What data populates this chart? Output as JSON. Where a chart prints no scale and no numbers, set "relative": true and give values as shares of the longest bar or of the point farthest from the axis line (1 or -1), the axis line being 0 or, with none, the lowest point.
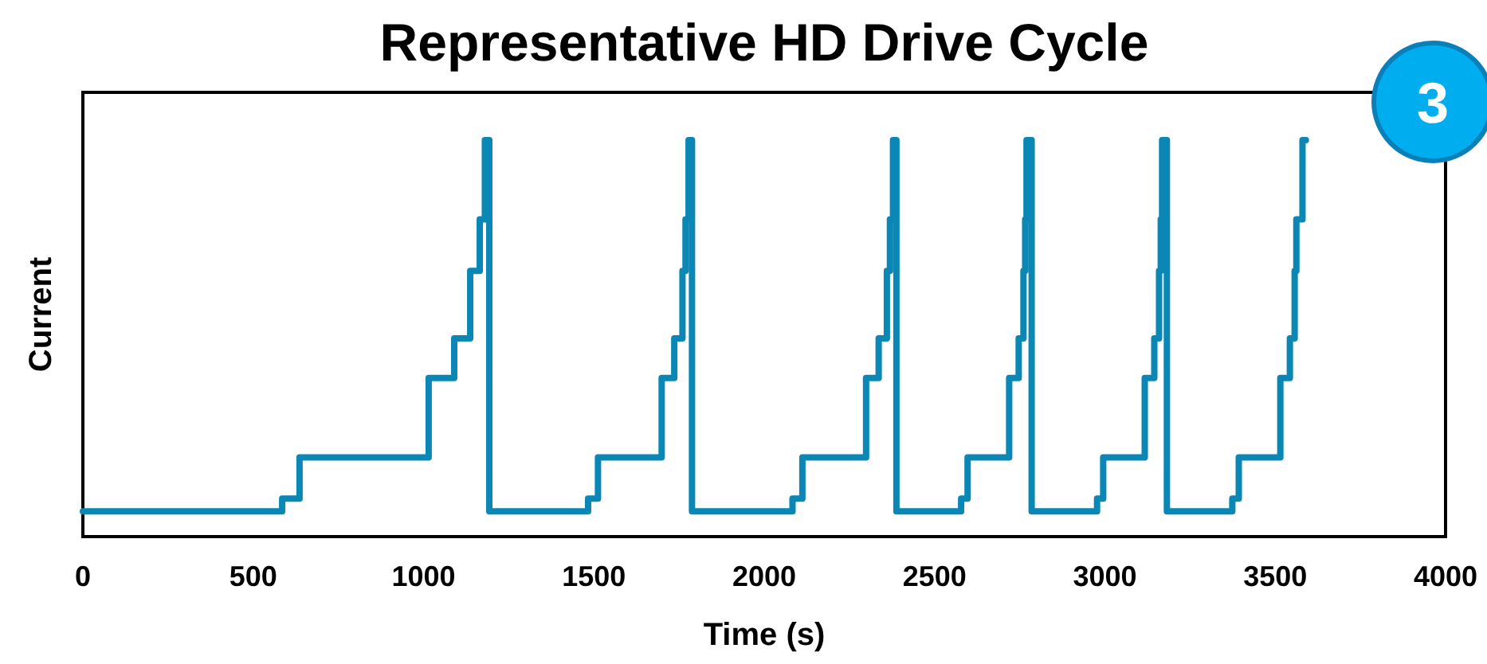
{
  "chart_data": {
    "type": "step",
    "title": "Representative HD Drive Cycle",
    "xlabel": "Time (s)",
    "ylabel": "Current",
    "relative": true,
    "xlim": [
      0,
      4000
    ],
    "xticks": [
      0,
      500,
      1000,
      1500,
      2000,
      2500,
      3000,
      3500,
      4000
    ],
    "grid": false,
    "annotations": [
      "3"
    ],
    "series": [
      {
        "color": "#0a87b5",
        "x": [
          0,
          585,
          636,
          1015,
          1090,
          1137,
          1165,
          1180,
          1193,
          1483,
          1512,
          1699,
          1736,
          1760,
          1769,
          1778,
          1788,
          2083,
          2112,
          2299,
          2336,
          2360,
          2369,
          2378,
          2388,
          2578,
          2597,
          2719,
          2747,
          2761,
          2766,
          2770,
          2785,
          2977,
          2995,
          3117,
          3145,
          3159,
          3164,
          3168,
          3182,
          3374,
          3393,
          3515,
          3543,
          3557,
          3562,
          3580,
          3590
        ],
        "values": [
          0.064,
          0.096,
          0.2,
          0.4,
          0.5,
          0.67,
          0.8,
          1,
          0.064,
          0.096,
          0.2,
          0.4,
          0.5,
          0.67,
          0.8,
          1,
          0.064,
          0.096,
          0.2,
          0.4,
          0.5,
          0.67,
          0.8,
          1,
          0.064,
          0.096,
          0.2,
          0.4,
          0.5,
          0.67,
          0.8,
          1,
          0.064,
          0.096,
          0.2,
          0.4,
          0.5,
          0.67,
          0.8,
          1,
          0.064,
          0.096,
          0.2,
          0.4,
          0.5,
          0.67,
          0.8,
          1,
          1
        ]
      }
    ]
  }
}
